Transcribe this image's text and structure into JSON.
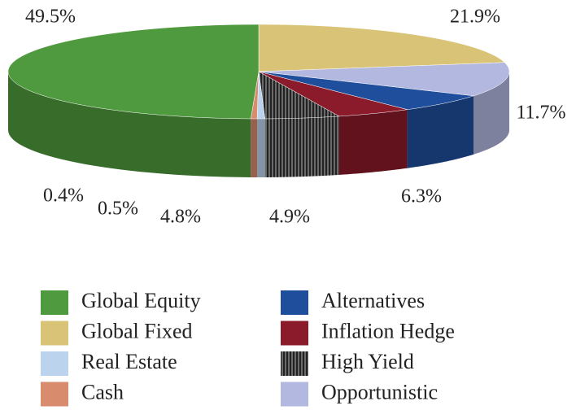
{
  "chart_data": {
    "type": "pie",
    "categories": [
      "Global Equity",
      "Global Fixed",
      "Real Estate",
      "Cash",
      "Alternatives",
      "Inflation Hedge",
      "High Yield",
      "Opportunistic"
    ],
    "values": [
      49.5,
      21.9,
      0.5,
      0.4,
      6.3,
      4.9,
      4.8,
      11.7
    ],
    "value_labels": [
      "49.5%",
      "21.9%",
      "0.5%",
      "0.4%",
      "6.3%",
      "4.9%",
      "4.8%",
      "11.7%"
    ],
    "colors": [
      "#4f9a3e",
      "#d9c376",
      "#bcd3ee",
      "#d98b6e",
      "#1f4e9c",
      "#8b1a2a",
      "#4a4a4a",
      "#b3b8e0"
    ],
    "legend": "bottom"
  }
}
